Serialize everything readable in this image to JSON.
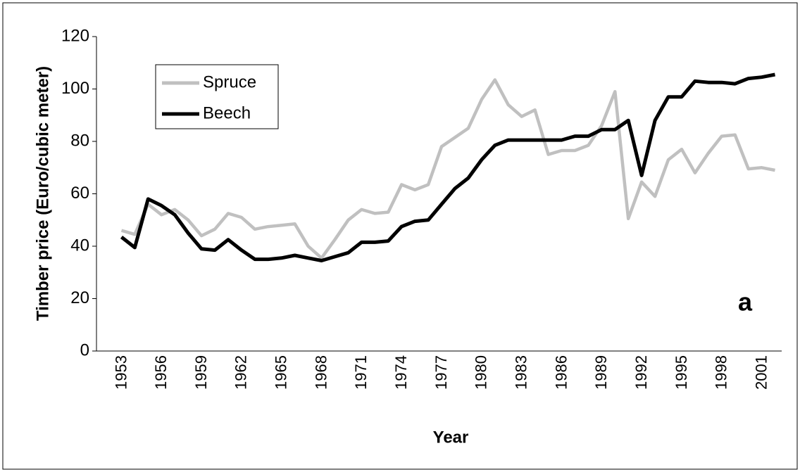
{
  "chart_data": {
    "type": "line",
    "x_label": "Year",
    "y_label": "Timber price (Euro/cubic meter)",
    "annotation": "a",
    "categories": [
      "1953",
      null,
      null,
      "1956",
      null,
      null,
      "1959",
      null,
      null,
      "1962",
      null,
      null,
      "1965",
      null,
      null,
      "1968",
      null,
      null,
      "1971",
      null,
      null,
      "1974",
      null,
      null,
      "1977",
      null,
      null,
      "1980",
      null,
      null,
      "1983",
      null,
      null,
      "1986",
      null,
      null,
      "1989",
      null,
      null,
      "1992",
      null,
      null,
      "1995",
      null,
      null,
      "1998",
      null,
      null,
      "2001",
      null
    ],
    "series": [
      {
        "name": "Spruce",
        "color": "#c0c0c0",
        "values": [
          46,
          44.5,
          56,
          52,
          54,
          50,
          44,
          46.5,
          52.5,
          51,
          46.5,
          47.5,
          48,
          48.5,
          40,
          35.5,
          42.5,
          50,
          54,
          52.5,
          53,
          63.5,
          61.5,
          63.5,
          78,
          81.5,
          85,
          96,
          103.5,
          94,
          89.5,
          92,
          75,
          76.5,
          76.5,
          78.5,
          86,
          99,
          50.5,
          64.5,
          59,
          73,
          77,
          68,
          75.5,
          82,
          82.5,
          69.5,
          70,
          69
        ]
      },
      {
        "name": "Beech",
        "color": "#000000",
        "values": [
          43.5,
          39.5,
          58,
          55.5,
          52,
          45,
          39,
          38.5,
          42.5,
          38.5,
          35,
          35,
          35.5,
          36.5,
          35.5,
          34.5,
          36,
          37.5,
          41.5,
          41.5,
          42,
          47.5,
          49.5,
          50,
          56,
          62,
          66,
          73,
          78.5,
          80.5,
          80.5,
          80.5,
          80.5,
          80.5,
          82,
          82,
          84.5,
          84.5,
          88,
          67,
          88,
          97,
          97,
          103,
          102.5,
          102.5,
          102,
          104,
          104.5,
          105.5
        ]
      }
    ],
    "ylim": [
      0,
      120
    ],
    "yticks": [
      0,
      20,
      40,
      60,
      80,
      100,
      120
    ],
    "grid": false,
    "legend": "upper left"
  }
}
